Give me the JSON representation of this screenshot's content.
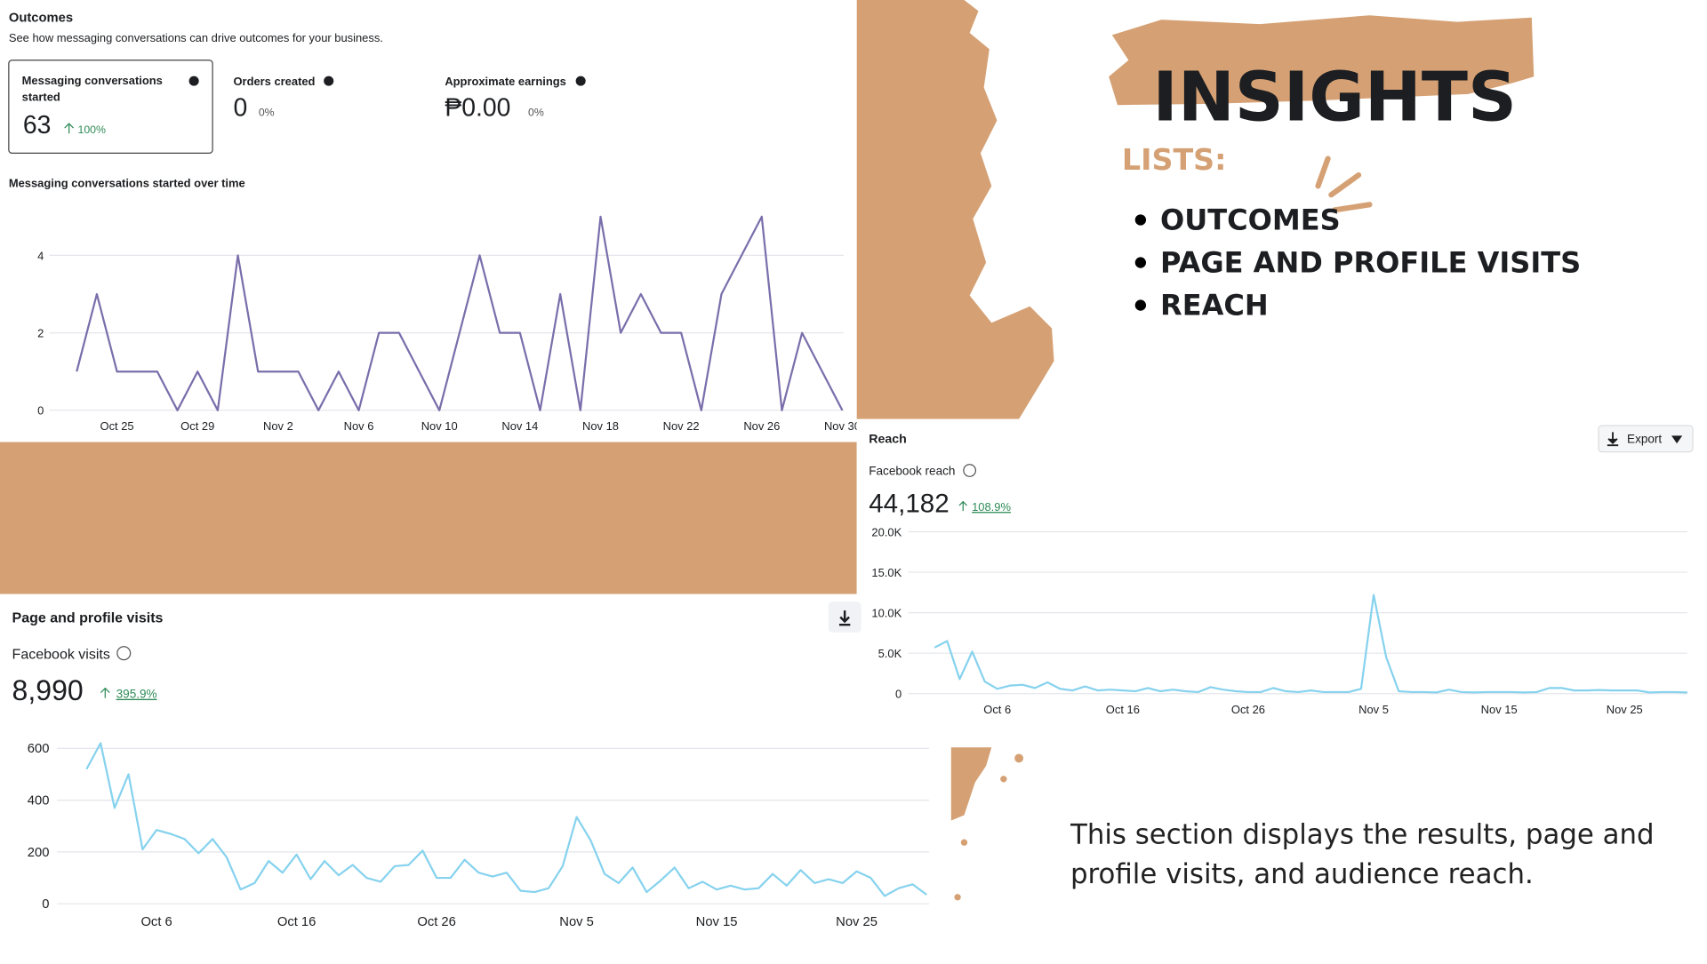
{
  "slide": {
    "title": "INSIGHTS",
    "list_heading": "LISTS:",
    "list_items": [
      "OUTCOMES",
      "PAGE AND PROFILE VISITS",
      "REACH"
    ],
    "description": "This section displays the results, page and profile visits, and audience reach."
  },
  "outcomes": {
    "title": "Outcomes",
    "subtitle": "See how messaging conversations can drive outcomes for your business.",
    "metrics": [
      {
        "label": "Messaging conversations started",
        "value": "63",
        "change": "100%"
      },
      {
        "label": "Orders created",
        "value": "0",
        "change": "0%"
      },
      {
        "label": "Approximate earnings",
        "value": "₱0.00",
        "change": "0%"
      }
    ]
  },
  "chart_data": [
    {
      "type": "line",
      "title": "Messaging conversations started over time",
      "color": "#7a6eab",
      "categories": [
        null,
        null,
        "Oct 25",
        null,
        null,
        null,
        "Oct 29",
        null,
        null,
        null,
        "Nov 2",
        null,
        null,
        null,
        "Nov 6",
        null,
        null,
        null,
        "Nov 10",
        null,
        null,
        null,
        "Nov 14",
        null,
        null,
        null,
        "Nov 18",
        null,
        null,
        null,
        "Nov 22",
        null,
        null,
        null,
        "Nov 26",
        null,
        null,
        null,
        "Nov 30"
      ],
      "values": [
        1,
        3,
        1,
        1,
        1,
        0,
        1,
        0,
        4,
        1,
        1,
        1,
        0,
        1,
        0,
        2,
        2,
        1,
        0,
        2,
        4,
        2,
        2,
        0,
        3,
        0,
        5,
        2,
        3,
        2,
        2,
        0,
        3,
        4,
        5,
        0,
        2,
        1,
        0
      ],
      "ylim": [
        0,
        5
      ],
      "yticks": [
        0,
        2,
        4
      ],
      "grid": true
    },
    {
      "type": "line",
      "title": "Page and profile visits",
      "metric_label": "Facebook visits",
      "metric_value": "8,990",
      "metric_change": "395.9%",
      "color": "#86d2ee",
      "categories": [
        null,
        null,
        null,
        null,
        null,
        "Oct 6",
        null,
        null,
        null,
        null,
        null,
        null,
        null,
        null,
        null,
        "Oct 16",
        null,
        null,
        null,
        null,
        null,
        null,
        null,
        null,
        null,
        "Oct 26",
        null,
        null,
        null,
        null,
        null,
        null,
        null,
        null,
        null,
        "Nov 5",
        null,
        null,
        null,
        null,
        null,
        null,
        null,
        null,
        null,
        "Nov 15",
        null,
        null,
        null,
        null,
        null,
        null,
        null,
        null,
        null,
        "Nov 25",
        null,
        null,
        null,
        null,
        null
      ],
      "values": [
        520,
        620,
        370,
        500,
        210,
        285,
        270,
        250,
        195,
        250,
        180,
        55,
        80,
        165,
        120,
        190,
        95,
        165,
        110,
        150,
        100,
        85,
        145,
        150,
        205,
        100,
        100,
        170,
        120,
        105,
        120,
        50,
        45,
        60,
        145,
        335,
        245,
        115,
        80,
        140,
        45,
        90,
        140,
        60,
        85,
        55,
        70,
        55,
        60,
        115,
        70,
        130,
        80,
        95,
        80,
        125,
        100,
        30,
        60,
        75,
        35
      ],
      "ylim": [
        0,
        600
      ],
      "yticks": [
        0,
        200,
        400,
        600
      ],
      "grid": true
    },
    {
      "type": "line",
      "title": "Reach",
      "metric_label": "Facebook reach",
      "metric_value": "44,182",
      "metric_change": "108.9%",
      "button": "Export",
      "color": "#86d2ee",
      "categories": [
        null,
        null,
        null,
        null,
        null,
        "Oct 6",
        null,
        null,
        null,
        null,
        null,
        null,
        null,
        null,
        null,
        "Oct 16",
        null,
        null,
        null,
        null,
        null,
        null,
        null,
        null,
        null,
        "Oct 26",
        null,
        null,
        null,
        null,
        null,
        null,
        null,
        null,
        null,
        "Nov 5",
        null,
        null,
        null,
        null,
        null,
        null,
        null,
        null,
        null,
        "Nov 15",
        null,
        null,
        null,
        null,
        null,
        null,
        null,
        null,
        null,
        "Nov 25",
        null,
        null,
        null,
        null,
        null
      ],
      "values": [
        5700,
        6500,
        1800,
        5200,
        1500,
        600,
        1000,
        1100,
        700,
        1400,
        600,
        400,
        900,
        400,
        500,
        400,
        300,
        700,
        300,
        500,
        300,
        200,
        800,
        500,
        300,
        200,
        200,
        700,
        300,
        200,
        400,
        200,
        200,
        200,
        600,
        12200,
        4500,
        300,
        200,
        200,
        150,
        500,
        200,
        150,
        200,
        200,
        200,
        150,
        200,
        700,
        700,
        400,
        400,
        450,
        400,
        400,
        400,
        150,
        200,
        200,
        150
      ],
      "ylim": [
        0,
        20000
      ],
      "yticks": [
        0,
        {
          "value": 5000,
          "label": "5.0K"
        },
        {
          "value": 10000,
          "label": "10.0K"
        },
        {
          "value": 15000,
          "label": "15.0K"
        },
        {
          "value": 20000,
          "label": "20.0K"
        }
      ],
      "grid": true
    }
  ]
}
